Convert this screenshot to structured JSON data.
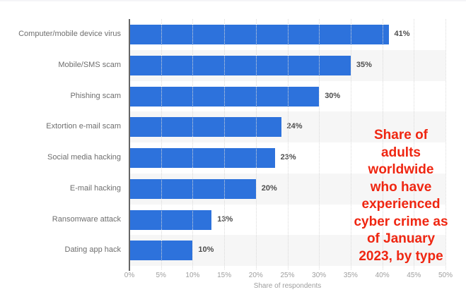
{
  "chart_data": {
    "type": "bar",
    "orientation": "horizontal",
    "categories": [
      "Computer/mobile device virus",
      "Mobile/SMS scam",
      "Phishing scam",
      "Extortion e-mail scam",
      "Social media hacking",
      "E-mail hacking",
      "Ransomware attack",
      "Dating app hack"
    ],
    "values": [
      41,
      35,
      30,
      24,
      23,
      20,
      13,
      10
    ],
    "value_labels": [
      "41%",
      "35%",
      "30%",
      "24%",
      "23%",
      "20%",
      "13%",
      "10%"
    ],
    "title": "",
    "xlabel": "Share of respondents",
    "ylabel": "",
    "xlim": [
      0,
      50
    ],
    "x_ticks": [
      0,
      5,
      10,
      15,
      20,
      25,
      30,
      35,
      40,
      45,
      50
    ],
    "x_tick_labels": [
      "0%",
      "5%",
      "10%",
      "15%",
      "20%",
      "25%",
      "30%",
      "35%",
      "40%",
      "45%",
      "50%"
    ],
    "grid": "vertical-dotted",
    "legend": "none",
    "bar_color": "#2d72dc",
    "annotation": {
      "text": "Share of adults worldwide who have experienced cyber crime as of January 2023, by type",
      "lines": [
        "Share of",
        "adults",
        "worldwide",
        "who have",
        "experienced",
        "cyber crime as",
        "of January",
        "2023, by type"
      ],
      "color": "#ef2611"
    },
    "colors": {
      "band": "#f6f6f6",
      "gridline": "#d9d9d9",
      "axis_line": "#666666",
      "category_label": "#6e6e6e",
      "value_label": "#4d4d4d",
      "tick_label": "#9e9e9e",
      "axis_title": "#9e9e9e"
    }
  }
}
